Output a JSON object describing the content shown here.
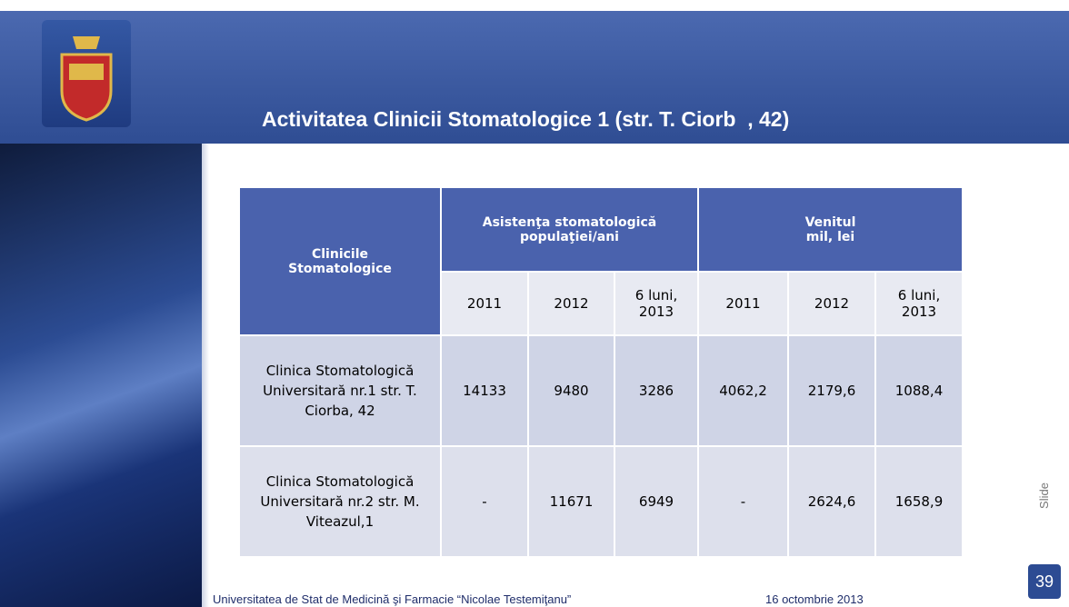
{
  "header": {
    "title": "Activitatea Clinicii Stomatologice 1 (str. T. Ciorb  , 42)"
  },
  "table": {
    "header": [
      "Clinicile Stomatologice",
      "Asistenţa stomatologică populaţiei/ani",
      "Venitul mil, lei"
    ],
    "subheader": [
      "2011",
      "2012",
      "6 luni, 2013",
      "2011",
      "2012",
      "6 luni, 2013"
    ],
    "rows": [
      [
        "Clinica Stomatologică Universitară nr.1 str. T. Ciorba, 42",
        "14133",
        "9480",
        "3286",
        "4062,2",
        "2179,6",
        "1088,4"
      ],
      [
        "Clinica Stomatologică Universitară nr.2 str. M. Viteazul,1",
        "-",
        "11671",
        "6949",
        "-",
        "2624,6",
        "1658,9"
      ]
    ]
  },
  "footer": {
    "university": "Universitatea de Stat de Medicină şi Farmacie “Nicolae Testemiţanu”",
    "date": "16 octombrie 2013"
  },
  "slide": {
    "label": "Slide",
    "number": "39"
  }
}
